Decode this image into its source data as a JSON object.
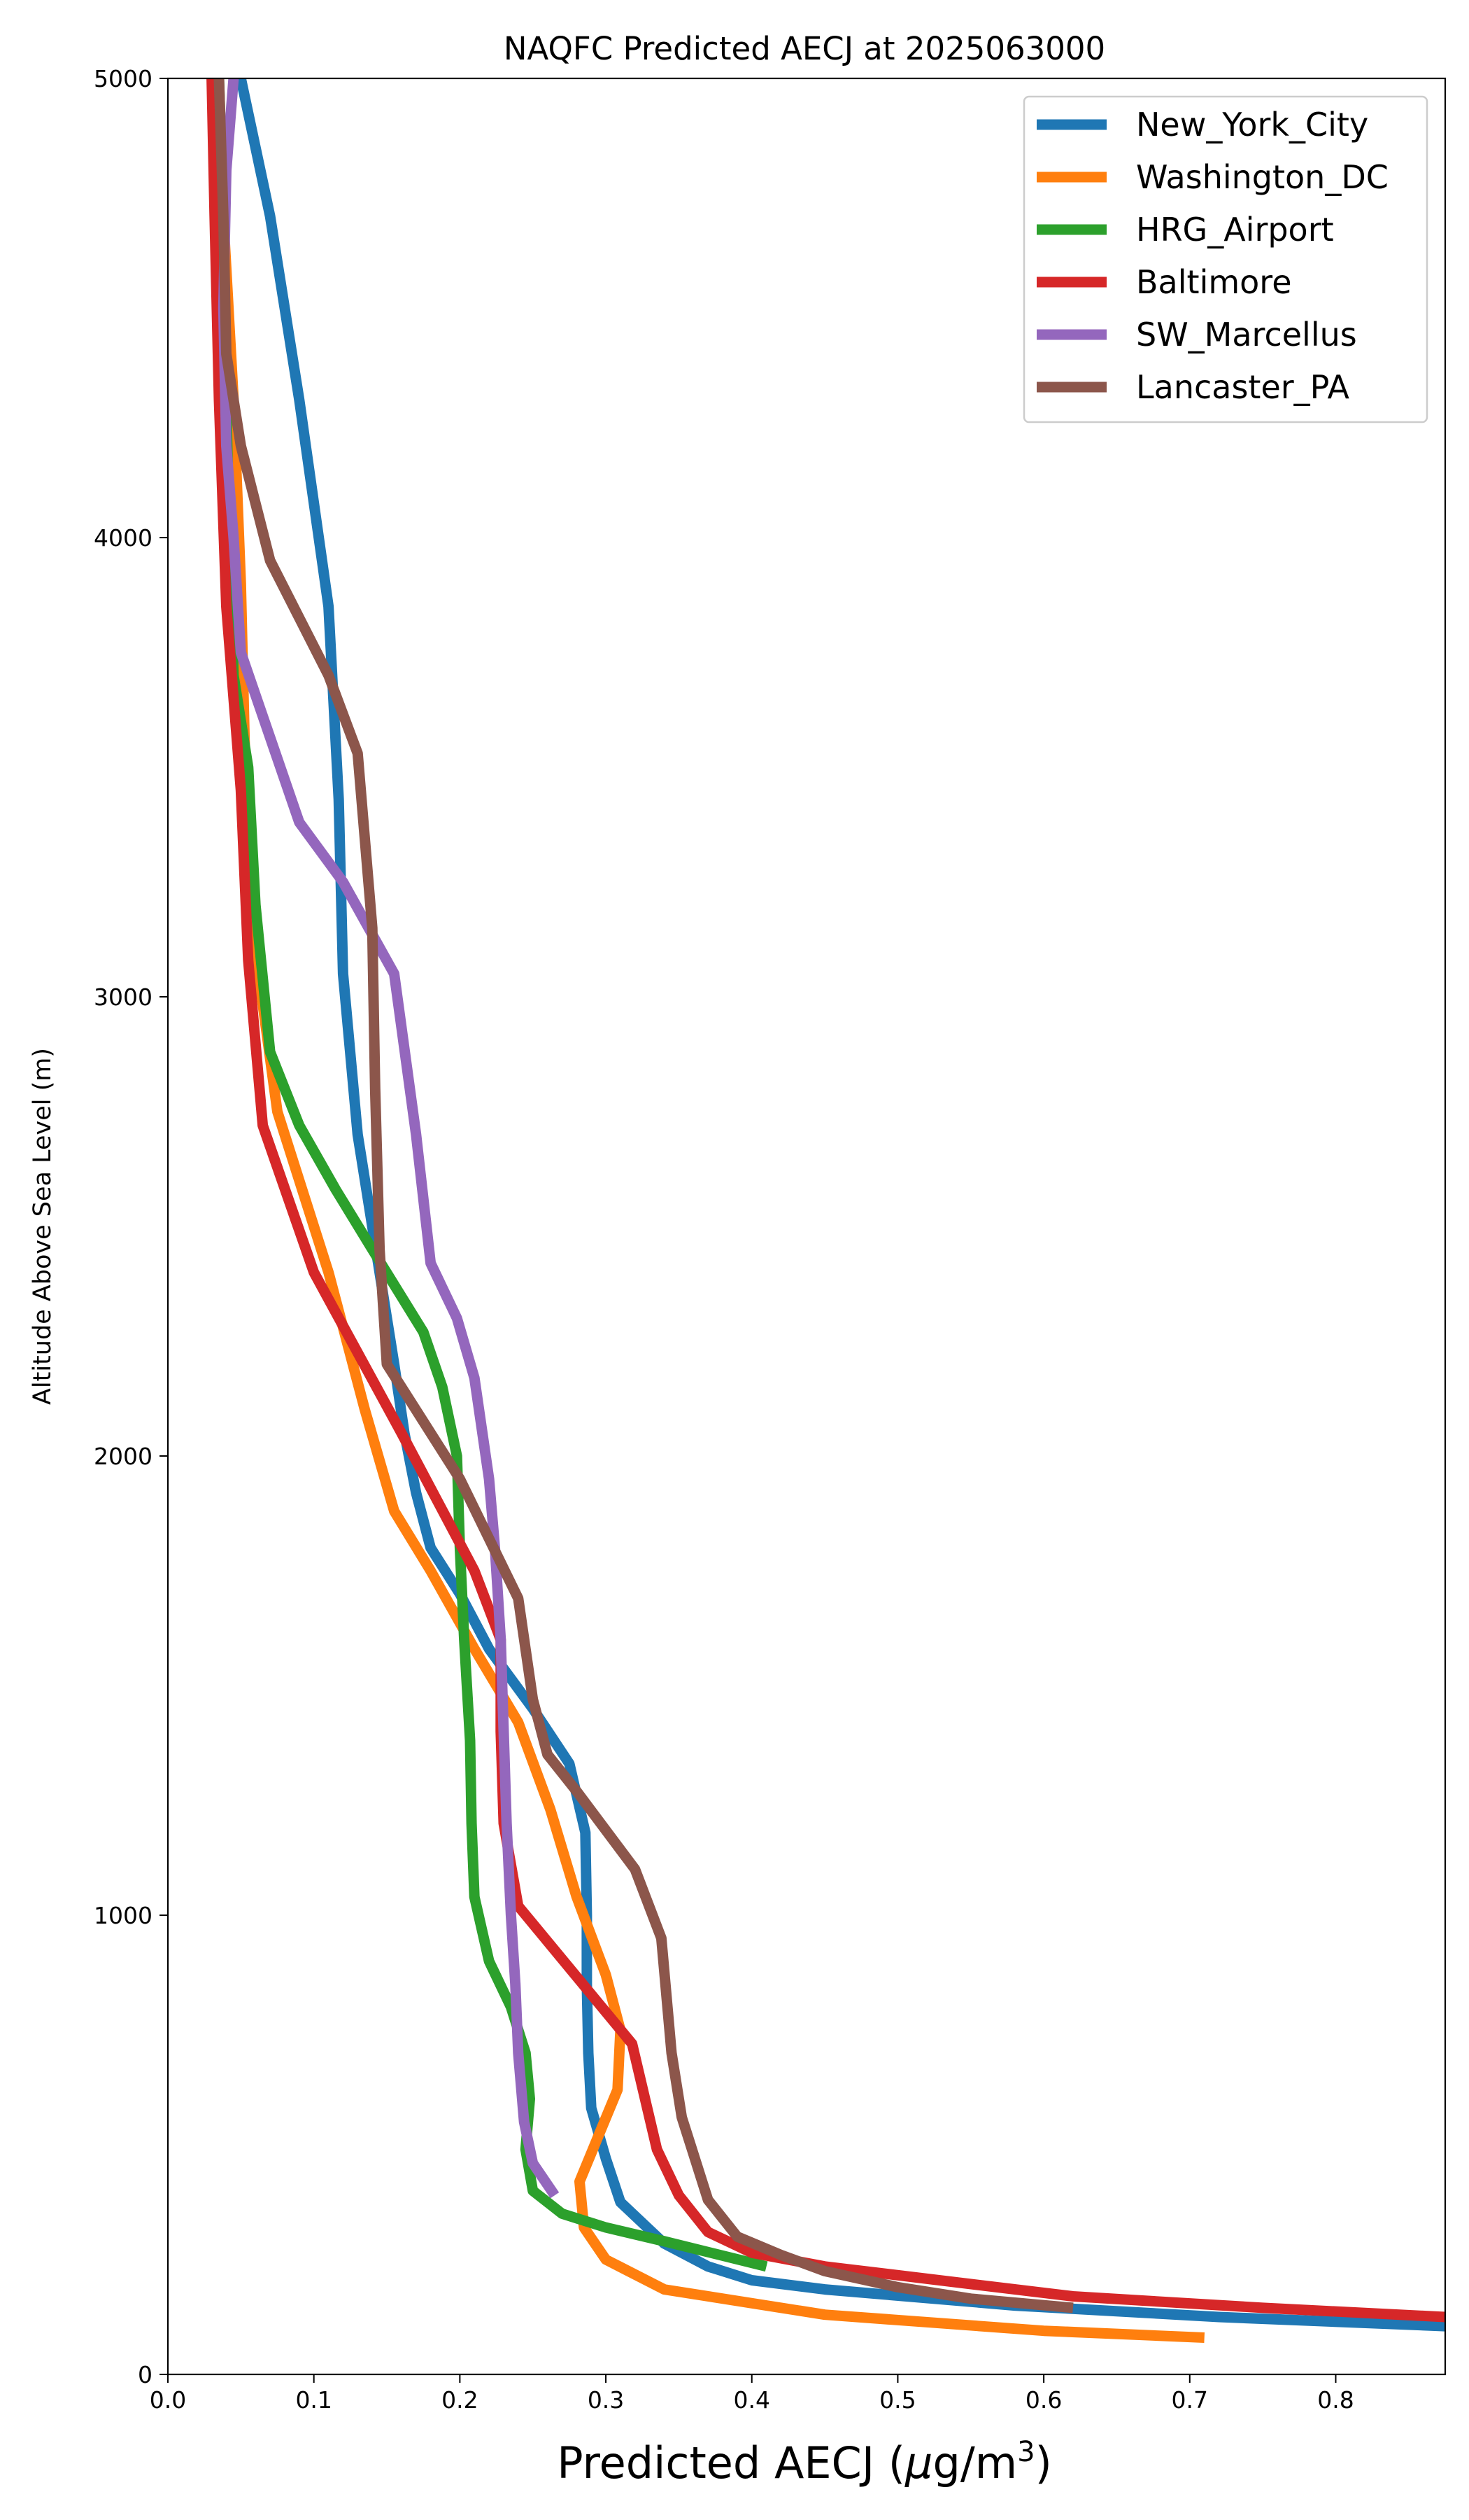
{
  "chart_data": {
    "type": "line",
    "title": "NAQFC Predicted AECJ at 2025063000",
    "xlabel_main": "Predicted AECJ (",
    "xlabel_mu": "μ",
    "xlabel_unit": "g/m",
    "xlabel_sup": "3",
    "xlabel_close": ")",
    "ylabel": "Altitude Above Sea Level (m)",
    "xlim": [
      0,
      0.875
    ],
    "ylim": [
      0,
      5000
    ],
    "x_ticks": [
      {
        "value": 0.0,
        "label": "0.0"
      },
      {
        "value": 0.1,
        "label": "0.1"
      },
      {
        "value": 0.2,
        "label": "0.2"
      },
      {
        "value": 0.3,
        "label": "0.3"
      },
      {
        "value": 0.4,
        "label": "0.4"
      },
      {
        "value": 0.5,
        "label": "0.5"
      },
      {
        "value": 0.6,
        "label": "0.6"
      },
      {
        "value": 0.7,
        "label": "0.7"
      },
      {
        "value": 0.8,
        "label": "0.8"
      }
    ],
    "y_ticks": [
      {
        "value": 0,
        "label": "0"
      },
      {
        "value": 1000,
        "label": "1000"
      },
      {
        "value": 2000,
        "label": "2000"
      },
      {
        "value": 3000,
        "label": "3000"
      },
      {
        "value": 4000,
        "label": "4000"
      },
      {
        "value": 5000,
        "label": "5000"
      }
    ],
    "grid": false,
    "legend_position": "top-right",
    "series": [
      {
        "name": "New_York_City",
        "color": "#1f77b4",
        "points": [
          [
            0.875,
            105
          ],
          [
            0.72,
            125
          ],
          [
            0.58,
            150
          ],
          [
            0.45,
            185
          ],
          [
            0.4,
            205
          ],
          [
            0.37,
            235
          ],
          [
            0.34,
            285
          ],
          [
            0.31,
            375
          ],
          [
            0.3,
            470
          ],
          [
            0.29,
            580
          ],
          [
            0.288,
            700
          ],
          [
            0.287,
            850
          ],
          [
            0.287,
            1000
          ],
          [
            0.286,
            1180
          ],
          [
            0.275,
            1330
          ],
          [
            0.25,
            1450
          ],
          [
            0.22,
            1580
          ],
          [
            0.2,
            1700
          ],
          [
            0.18,
            1800
          ],
          [
            0.17,
            1920
          ],
          [
            0.162,
            2050
          ],
          [
            0.155,
            2200
          ],
          [
            0.145,
            2400
          ],
          [
            0.13,
            2700
          ],
          [
            0.12,
            3050
          ],
          [
            0.117,
            3430
          ],
          [
            0.11,
            3850
          ],
          [
            0.09,
            4300
          ],
          [
            0.07,
            4700
          ],
          [
            0.05,
            5000
          ]
        ]
      },
      {
        "name": "Washington_DC",
        "color": "#ff7f0e",
        "points": [
          [
            0.71,
            80
          ],
          [
            0.6,
            95
          ],
          [
            0.45,
            130
          ],
          [
            0.34,
            185
          ],
          [
            0.3,
            250
          ],
          [
            0.285,
            320
          ],
          [
            0.282,
            420
          ],
          [
            0.295,
            520
          ],
          [
            0.308,
            620
          ],
          [
            0.31,
            750
          ],
          [
            0.3,
            870
          ],
          [
            0.28,
            1040
          ],
          [
            0.262,
            1230
          ],
          [
            0.24,
            1420
          ],
          [
            0.21,
            1580
          ],
          [
            0.18,
            1750
          ],
          [
            0.155,
            1880
          ],
          [
            0.135,
            2100
          ],
          [
            0.11,
            2400
          ],
          [
            0.075,
            2750
          ],
          [
            0.06,
            3100
          ],
          [
            0.053,
            3500
          ],
          [
            0.05,
            3900
          ],
          [
            0.045,
            4300
          ],
          [
            0.038,
            4700
          ],
          [
            0.032,
            5000
          ]
        ]
      },
      {
        "name": "HRG_Airport",
        "color": "#2ca02c",
        "points": [
          [
            0.41,
            235
          ],
          [
            0.34,
            290
          ],
          [
            0.3,
            320
          ],
          [
            0.27,
            350
          ],
          [
            0.25,
            400
          ],
          [
            0.245,
            490
          ],
          [
            0.248,
            600
          ],
          [
            0.245,
            700
          ],
          [
            0.235,
            800
          ],
          [
            0.22,
            900
          ],
          [
            0.21,
            1040
          ],
          [
            0.208,
            1200
          ],
          [
            0.207,
            1380
          ],
          [
            0.203,
            1600
          ],
          [
            0.2,
            1800
          ],
          [
            0.198,
            2000
          ],
          [
            0.188,
            2150
          ],
          [
            0.175,
            2270
          ],
          [
            0.14,
            2450
          ],
          [
            0.115,
            2580
          ],
          [
            0.09,
            2720
          ],
          [
            0.07,
            2880
          ],
          [
            0.06,
            3200
          ],
          [
            0.055,
            3500
          ],
          [
            0.045,
            3700
          ],
          [
            0.042,
            4000
          ],
          [
            0.04,
            4300
          ],
          [
            0.038,
            4700
          ],
          [
            0.035,
            5000
          ]
        ]
      },
      {
        "name": "Baltimore",
        "color": "#d62728",
        "points": [
          [
            0.875,
            125
          ],
          [
            0.75,
            145
          ],
          [
            0.62,
            170
          ],
          [
            0.45,
            235
          ],
          [
            0.4,
            265
          ],
          [
            0.37,
            310
          ],
          [
            0.35,
            390
          ],
          [
            0.335,
            490
          ],
          [
            0.318,
            720
          ],
          [
            0.24,
            1020
          ],
          [
            0.23,
            1200
          ],
          [
            0.228,
            1400
          ],
          [
            0.228,
            1600
          ],
          [
            0.21,
            1750
          ],
          [
            0.16,
            2050
          ],
          [
            0.1,
            2400
          ],
          [
            0.065,
            2720
          ],
          [
            0.055,
            3080
          ],
          [
            0.05,
            3450
          ],
          [
            0.04,
            3850
          ],
          [
            0.035,
            4300
          ],
          [
            0.032,
            4700
          ],
          [
            0.03,
            5000
          ]
        ]
      },
      {
        "name": "SW_Marcellus",
        "color": "#9467bd",
        "points": [
          [
            0.265,
            390
          ],
          [
            0.25,
            460
          ],
          [
            0.244,
            550
          ],
          [
            0.24,
            700
          ],
          [
            0.238,
            850
          ],
          [
            0.235,
            1000
          ],
          [
            0.232,
            1200
          ],
          [
            0.23,
            1400
          ],
          [
            0.228,
            1600
          ],
          [
            0.224,
            1800
          ],
          [
            0.22,
            1950
          ],
          [
            0.21,
            2170
          ],
          [
            0.198,
            2300
          ],
          [
            0.18,
            2420
          ],
          [
            0.17,
            2700
          ],
          [
            0.155,
            3050
          ],
          [
            0.12,
            3250
          ],
          [
            0.09,
            3380
          ],
          [
            0.05,
            3750
          ],
          [
            0.045,
            4000
          ],
          [
            0.04,
            4200
          ],
          [
            0.038,
            4500
          ],
          [
            0.04,
            4800
          ],
          [
            0.045,
            5000
          ]
        ]
      },
      {
        "name": "Lancaster_PA",
        "color": "#8c564b",
        "points": [
          [
            0.62,
            145
          ],
          [
            0.55,
            165
          ],
          [
            0.5,
            190
          ],
          [
            0.45,
            225
          ],
          [
            0.42,
            260
          ],
          [
            0.39,
            300
          ],
          [
            0.37,
            380
          ],
          [
            0.36,
            480
          ],
          [
            0.352,
            560
          ],
          [
            0.345,
            700
          ],
          [
            0.338,
            950
          ],
          [
            0.32,
            1100
          ],
          [
            0.28,
            1270
          ],
          [
            0.26,
            1350
          ],
          [
            0.25,
            1470
          ],
          [
            0.24,
            1690
          ],
          [
            0.2,
            1950
          ],
          [
            0.17,
            2100
          ],
          [
            0.15,
            2200
          ],
          [
            0.145,
            2450
          ],
          [
            0.142,
            2800
          ],
          [
            0.14,
            3150
          ],
          [
            0.13,
            3530
          ],
          [
            0.11,
            3700
          ],
          [
            0.07,
            3950
          ],
          [
            0.05,
            4200
          ],
          [
            0.04,
            4400
          ],
          [
            0.038,
            4700
          ],
          [
            0.035,
            5000
          ]
        ]
      }
    ]
  }
}
